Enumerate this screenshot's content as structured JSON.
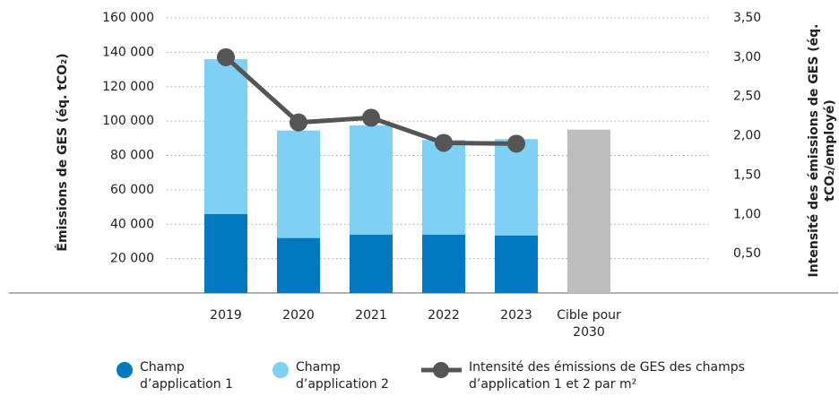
{
  "chart_data": {
    "type": "bar",
    "y_label": "Émissions de GES (éq. tCO₂)",
    "y2_label": "Intensité des émissions de GES (éq. tCO₂/employé)",
    "categories": [
      "2019",
      "2020",
      "2021",
      "2022",
      "2023",
      "Cible pour 2030"
    ],
    "series": [
      {
        "name": "Champ d’application 1",
        "type": "bar",
        "color": "#0079c1",
        "values": [
          46000,
          32000,
          34000,
          34000,
          33500,
          null
        ]
      },
      {
        "name": "Champ d’application 2",
        "type": "bar",
        "color": "#7fd0f5",
        "values": [
          90000,
          62500,
          63500,
          55000,
          56000,
          null
        ]
      },
      {
        "type": "bar",
        "color": "#bdbdbd",
        "values": [
          null,
          null,
          null,
          null,
          null,
          95000
        ]
      },
      {
        "name": "Intensité des émissions de GES des champs d’application 1 et 2 par m²",
        "type": "line",
        "axis": "y2",
        "color": "#555555",
        "values": [
          3.0,
          2.17,
          2.23,
          1.91,
          1.9,
          null
        ]
      }
    ],
    "stacked": true,
    "ylim": [
      0,
      160000
    ],
    "yticks": [
      {
        "value": 20000,
        "label": "20 000"
      },
      {
        "value": 40000,
        "label": "40 000"
      },
      {
        "value": 60000,
        "label": "60 000"
      },
      {
        "value": 80000,
        "label": "80 000"
      },
      {
        "value": 100000,
        "label": "100 000"
      },
      {
        "value": 120000,
        "label": "120 000"
      },
      {
        "value": 140000,
        "label": "140 000"
      },
      {
        "value": 160000,
        "label": "160 000"
      }
    ],
    "y2lim": [
      0,
      3.5
    ],
    "y2ticks": [
      {
        "value": 0.5,
        "label": "0,50"
      },
      {
        "value": 1.0,
        "label": "1,00"
      },
      {
        "value": 1.5,
        "label": "1,50"
      },
      {
        "value": 2.0,
        "label": "2,00"
      },
      {
        "value": 2.5,
        "label": "2,50"
      },
      {
        "value": 3.0,
        "label": "3,00"
      },
      {
        "value": 3.5,
        "label": "3,50"
      }
    ],
    "grid": true,
    "legend": "bottom"
  }
}
